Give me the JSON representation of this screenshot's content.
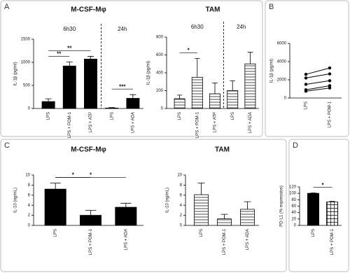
{
  "panel_labels": [
    "A",
    "B",
    "C",
    "D"
  ],
  "chart_data": [
    {
      "type": "bar",
      "title": "M-CSF-Mφ",
      "ylabel": "IL-1β (pg/ml)",
      "categories": [
        "LPS",
        "LPS + POM-1",
        "LPS + ATP",
        "LPS",
        "LPS + ADA"
      ],
      "groups": [
        {
          "label": "6h30",
          "size": 3
        },
        {
          "label": "24h",
          "size": 2
        }
      ],
      "values": [
        150,
        920,
        1070,
        10,
        220
      ],
      "errors": [
        60,
        90,
        60,
        10,
        80
      ],
      "color": "#000000",
      "pattern": "solid",
      "ylim": [
        0,
        1500
      ],
      "yticks": [
        0,
        500,
        1000,
        1500
      ],
      "annotations": [
        {
          "text": "**",
          "between": [
            0,
            1
          ]
        },
        {
          "text": "**",
          "between": [
            0,
            2
          ]
        },
        {
          "text": "***",
          "between": [
            3,
            4
          ]
        }
      ]
    },
    {
      "type": "bar",
      "title": "TAM",
      "ylabel": "IL-1β (pg/ml)",
      "categories": [
        "LPS",
        "LPS + POM-1",
        "LPS + ATP",
        "LPS",
        "LPS + ADA"
      ],
      "groups": [
        {
          "label": "6h30",
          "size": 3
        },
        {
          "label": "24h",
          "size": 2
        }
      ],
      "values": [
        110,
        350,
        165,
        200,
        500
      ],
      "errors": [
        40,
        210,
        120,
        110,
        130
      ],
      "color": "#000000",
      "pattern": "hline",
      "ylim": [
        0,
        800
      ],
      "yticks": [
        0,
        200,
        400,
        600,
        800
      ],
      "annotations": [
        {
          "text": "*",
          "between": [
            0,
            1
          ]
        }
      ]
    },
    {
      "type": "line",
      "ylabel": "IL-1β (pg/ml)",
      "categories": [
        "LPS",
        "LPS + POM-1"
      ],
      "series": [
        {
          "values": [
            2600,
            3300
          ]
        },
        {
          "values": [
            2200,
            2650
          ]
        },
        {
          "values": [
            1500,
            1900
          ]
        },
        {
          "values": [
            900,
            1350
          ]
        },
        {
          "values": [
            750,
            1100
          ]
        }
      ],
      "color": "#000000",
      "ylim": [
        0,
        6000
      ],
      "yticks": [
        0,
        2000,
        4000,
        6000
      ]
    },
    {
      "type": "bar",
      "title": "M-CSF-Mφ",
      "ylabel": "IL-10 (ng/mL)",
      "categories": [
        "LPS",
        "LPS + POM-1",
        "LPS + ADA"
      ],
      "values": [
        7.2,
        2.0,
        3.6
      ],
      "errors": [
        1.2,
        1.0,
        0.8
      ],
      "color": "#000000",
      "pattern": "solid",
      "ylim": [
        0,
        10
      ],
      "yticks": [
        0,
        2,
        4,
        6,
        8,
        10
      ],
      "annotations": [
        {
          "text": "*",
          "between": [
            0,
            1
          ]
        },
        {
          "text": "*",
          "between": [
            0,
            2
          ]
        }
      ]
    },
    {
      "type": "bar",
      "title": "TAM",
      "ylabel": "IL-10 (ng/mL)",
      "categories": [
        "LPS",
        "LPS + POM-1",
        "LPS + ADA"
      ],
      "values": [
        6.1,
        1.3,
        3.2
      ],
      "errors": [
        2.3,
        0.9,
        1.5
      ],
      "color": "#000000",
      "pattern": "hline",
      "ylim": [
        0,
        10
      ],
      "yticks": [
        0,
        2,
        4,
        6,
        8,
        10
      ]
    },
    {
      "type": "bar",
      "ylabel": "PD-L1 (% expression)",
      "categories": [
        "LPS",
        "LPS + POM-1"
      ],
      "values": [
        100,
        73
      ],
      "errors": [
        1,
        2
      ],
      "color": "#000000",
      "patterns": [
        "solid",
        "check"
      ],
      "ylim": [
        0,
        120
      ],
      "yticks": [
        0,
        20,
        40,
        60,
        80,
        100,
        120
      ],
      "annotations": [
        {
          "text": "*",
          "between": [
            0,
            1
          ]
        }
      ]
    }
  ]
}
